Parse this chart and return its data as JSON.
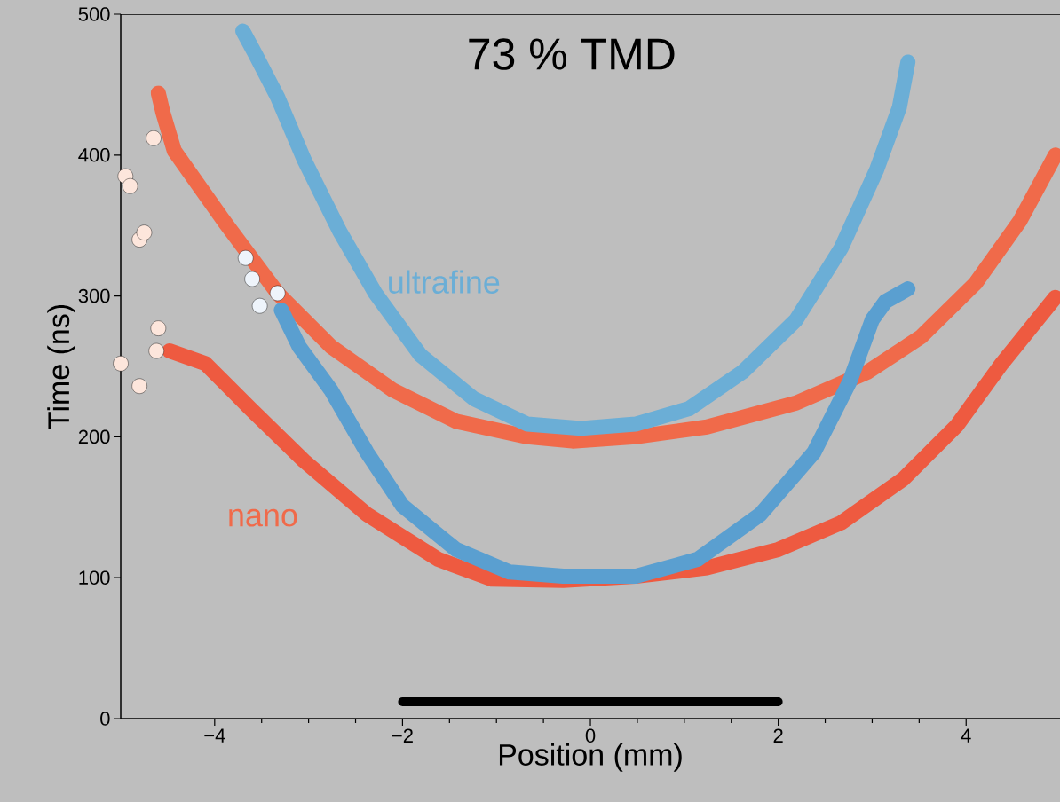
{
  "chart_data": {
    "type": "line",
    "title": "73 % TMD",
    "xlabel": "Position (mm)",
    "ylabel": "Time (ns)",
    "xlim": [
      -5,
      5
    ],
    "ylim": [
      0,
      500
    ],
    "xticks": [
      {
        "value": -4,
        "label": "−4"
      },
      {
        "value": -2,
        "label": "−2"
      },
      0,
      2,
      4
    ],
    "yticks": [
      0,
      100,
      200,
      300,
      400,
      500
    ],
    "series": [
      {
        "marker": "none",
        "color": "#f06a4a",
        "x": [
          -4.6,
          -4.55,
          -4.43,
          -3.9,
          -3.33,
          -2.76,
          -2.1,
          -1.43,
          -0.67,
          -0.19,
          0.48,
          1.24,
          2.19,
          2.95,
          3.52,
          4.1,
          4.57,
          4.95
        ],
        "values": [
          444,
          430,
          403,
          353,
          302,
          264,
          233,
          211,
          200,
          197,
          200,
          207,
          224,
          246,
          271,
          309,
          353,
          400
        ]
      },
      {
        "marker": "none",
        "color": "#ee5a40",
        "x": [
          -4.48,
          -4.1,
          -3.62,
          -3.05,
          -2.38,
          -1.62,
          -1.05,
          -0.29,
          0.48,
          1.24,
          2,
          2.67,
          3.33,
          3.9,
          4.38,
          4.95
        ],
        "values": [
          261,
          252,
          220,
          183,
          145,
          113,
          99,
          98,
          101,
          107,
          120,
          139,
          170,
          208,
          252,
          299
        ]
      },
      {
        "marker": "none",
        "color": "#6baed6",
        "x": [
          -3.7,
          -3.57,
          -3.33,
          -3.05,
          -2.67,
          -2.29,
          -1.81,
          -1.24,
          -0.67,
          -0.1,
          0.48,
          1.05,
          1.62,
          2.19,
          2.67,
          3.05,
          3.29,
          3.38
        ],
        "values": [
          488,
          472,
          441,
          397,
          346,
          302,
          258,
          227,
          209,
          206,
          209,
          220,
          246,
          283,
          334,
          390,
          434,
          466
        ]
      },
      {
        "marker": "none",
        "color": "#5a9fd0",
        "x": [
          -3.29,
          -3.1,
          -2.76,
          -2.38,
          -2,
          -1.43,
          -0.86,
          -0.29,
          0.48,
          1.14,
          1.81,
          2.38,
          2.76,
          3,
          3.14,
          3.38
        ],
        "values": [
          290,
          264,
          233,
          189,
          151,
          120,
          104,
          101,
          101,
          113,
          145,
          189,
          239,
          283,
          296,
          305
        ]
      },
      {
        "type": "scatter",
        "marker": "circle",
        "color": "#fde6dc",
        "x": [
          -4.95,
          -4.9,
          -4.8,
          -4.75,
          -4.65,
          -5,
          -4.8,
          -4.6,
          -4.62
        ],
        "values": [
          385,
          378,
          340,
          345,
          412,
          252,
          236,
          277,
          261
        ]
      },
      {
        "type": "scatter",
        "marker": "circle",
        "color": "#eef4fb",
        "x": [
          -3.67,
          -3.6,
          -3.52,
          -3.33
        ],
        "values": [
          327,
          312,
          293,
          302
        ]
      },
      {
        "marker": "none",
        "color": "#000000",
        "x": [
          -2,
          2
        ],
        "values": [
          12,
          12
        ]
      }
    ],
    "annotations": [
      "nano",
      "ultrafine"
    ]
  }
}
